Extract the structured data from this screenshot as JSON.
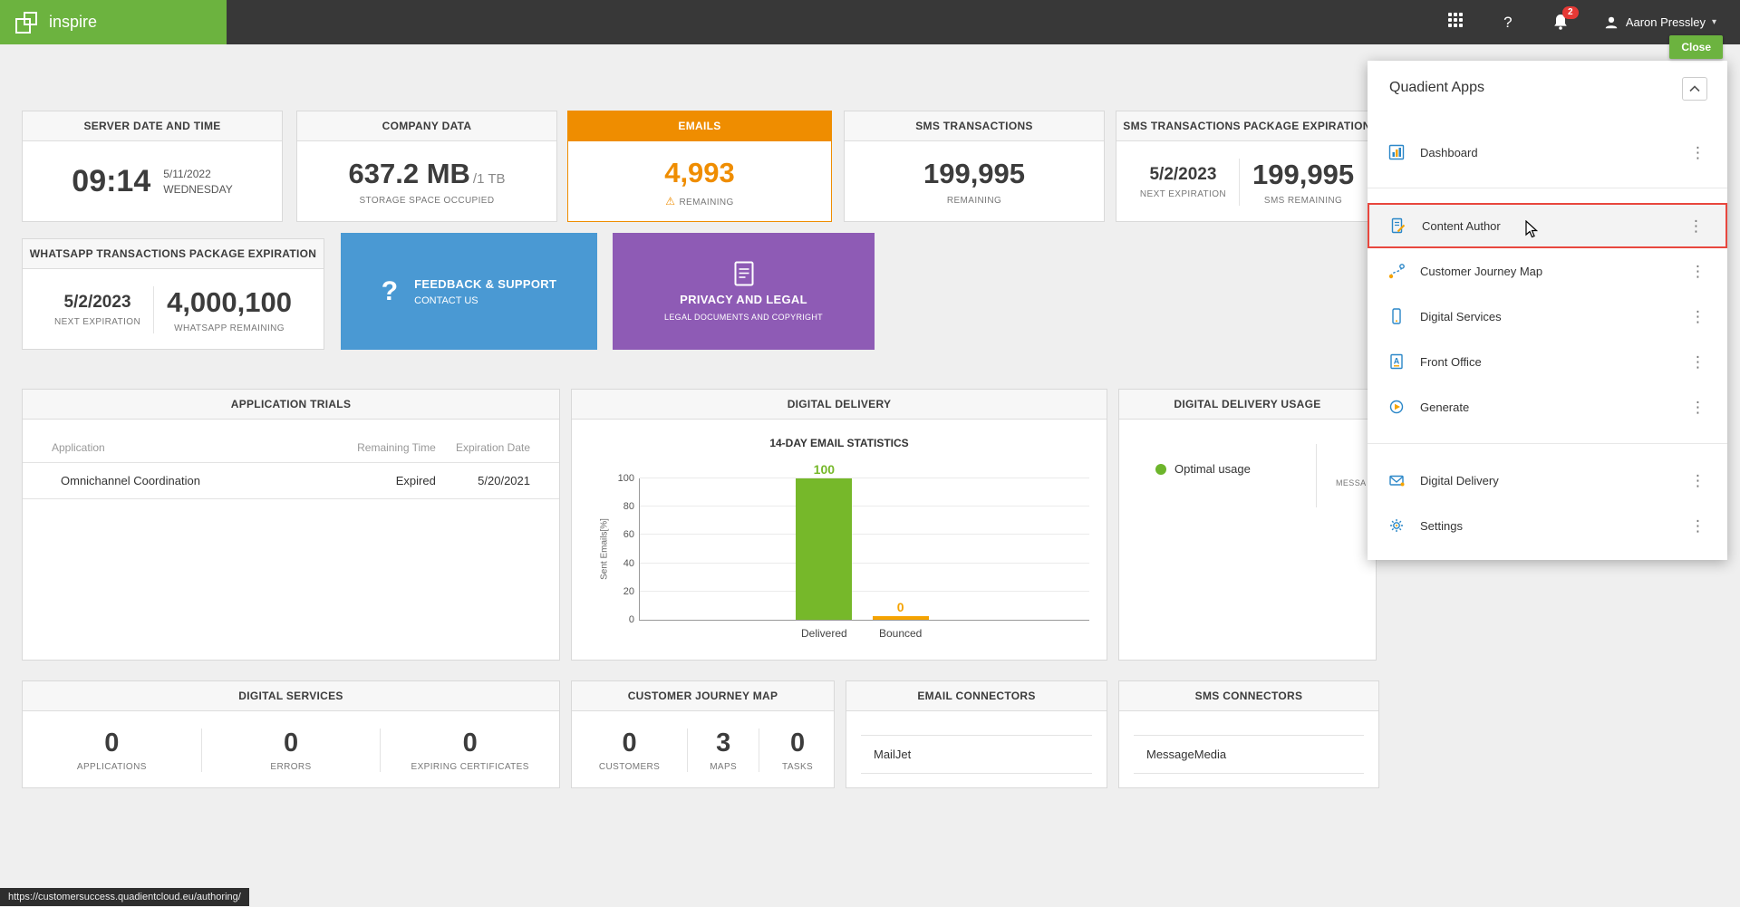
{
  "topbar": {
    "brand": "inspire",
    "help_label": "?",
    "user_name": "Aaron Pressley",
    "notification_count": "2",
    "caret": "▾"
  },
  "close_button_label": "Close",
  "statusbar_url": "https://customersuccess.quadientcloud.eu/authoring/",
  "cards": {
    "server": {
      "title": "SERVER DATE AND TIME",
      "time": "09:14",
      "date": "5/11/2022",
      "day": "WEDNESDAY"
    },
    "company": {
      "title": "COMPANY DATA",
      "value": "637.2 MB",
      "total": "/1 TB",
      "label": "STORAGE SPACE OCCUPIED"
    },
    "emails": {
      "title": "EMAILS",
      "value": "4,993",
      "warn_icon": "⚠",
      "label": "REMAINING"
    },
    "sms": {
      "title": "SMS TRANSACTIONS",
      "value": "199,995",
      "label": "REMAINING"
    },
    "sms_package": {
      "title": "SMS TRANSACTIONS PACKAGE EXPIRATION",
      "date": "5/2/2023",
      "date_label": "NEXT EXPIRATION",
      "value": "199,995",
      "value_label": "SMS REMAINING"
    },
    "whatsapp": {
      "title": "WHATSAPP TRANSACTIONS PACKAGE EXPIRATION",
      "date": "5/2/2023",
      "date_label": "NEXT EXPIRATION",
      "value": "4,000,100",
      "value_label": "WHATSAPP REMAINING"
    },
    "feedback": {
      "icon_text": "?",
      "title": "FEEDBACK & SUPPORT",
      "subtitle": "CONTACT US"
    },
    "privacy": {
      "title": "PRIVACY AND LEGAL",
      "subtitle": "LEGAL DOCUMENTS AND COPYRIGHT"
    },
    "trials": {
      "title": "APPLICATION TRIALS",
      "columns": [
        "Application",
        "Remaining Time",
        "Expiration Date"
      ],
      "rows": [
        {
          "application": "Omnichannel Coordination",
          "remaining": "Expired",
          "expiration": "5/20/2021"
        }
      ]
    },
    "delivery": {
      "title": "DIGITAL DELIVERY"
    },
    "usage": {
      "title": "DIGITAL DELIVERY USAGE",
      "status": "Optimal usage",
      "partial_label": "MESSA"
    },
    "services": {
      "title": "DIGITAL SERVICES",
      "stats": [
        {
          "value": "0",
          "label": "APPLICATIONS"
        },
        {
          "value": "0",
          "label": "ERRORS"
        },
        {
          "value": "0",
          "label": "EXPIRING CERTIFICATES"
        }
      ]
    },
    "journey": {
      "title": "CUSTOMER JOURNEY MAP",
      "stats": [
        {
          "value": "0",
          "label": "CUSTOMERS"
        },
        {
          "value": "3",
          "label": "MAPS"
        },
        {
          "value": "0",
          "label": "TASKS"
        }
      ]
    },
    "email_connectors": {
      "title": "EMAIL CONNECTORS",
      "items": [
        "MailJet"
      ]
    },
    "sms_connectors": {
      "title": "SMS CONNECTORS",
      "items": [
        "MessageMedia"
      ]
    }
  },
  "chart_data": {
    "type": "bar",
    "title": "14-DAY EMAIL STATISTICS",
    "categories": [
      "Delivered",
      "Bounced"
    ],
    "values": [
      100,
      0
    ],
    "colors": [
      "#76b82a",
      "#f5a300"
    ],
    "ylabel": "Sent Emails[%]",
    "xlabel": "",
    "ylim": [
      0,
      100
    ],
    "yticks": [
      0,
      20,
      40,
      60,
      80,
      100
    ],
    "grid": true,
    "legend": false
  },
  "apps_panel": {
    "title": "Quadient Apps",
    "kebab": "⋮",
    "groups": [
      {
        "items": [
          {
            "label": "Dashboard"
          }
        ]
      },
      {
        "items": [
          {
            "label": "Content Author"
          },
          {
            "label": "Customer Journey Map"
          },
          {
            "label": "Digital Services"
          },
          {
            "label": "Front Office"
          },
          {
            "label": "Generate"
          }
        ]
      },
      {
        "items": [
          {
            "label": "Digital Delivery"
          },
          {
            "label": "Settings"
          }
        ]
      }
    ]
  },
  "colors": {
    "brand_green": "#6cb33f",
    "accent_orange": "#ef8d00",
    "info_blue": "#4a99d3",
    "purple": "#8e5bb5",
    "highlight_red": "#e8473e",
    "badge_red": "#e53935",
    "status_green": "#6db52c",
    "bar_green": "#76b82a",
    "bar_orange": "#f5a300"
  }
}
